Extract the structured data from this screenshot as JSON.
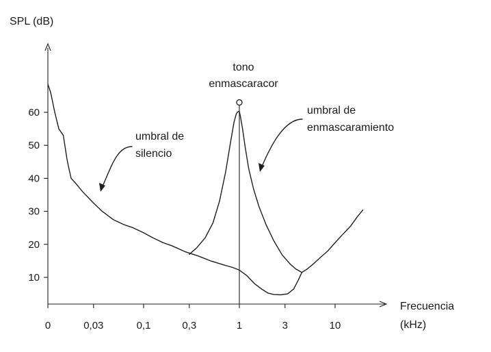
{
  "chart_data": {
    "type": "line",
    "title": "",
    "ylabel": "SPL (dB)",
    "xlabel_line1": "Frecuencia",
    "xlabel_line2": "(kHz)",
    "x_scale": "log",
    "x_ticks": [
      {
        "label": "0",
        "khz": 0.01
      },
      {
        "label": "0,03",
        "khz": 0.03
      },
      {
        "label": "0,1",
        "khz": 0.1
      },
      {
        "label": "0,3",
        "khz": 0.3
      },
      {
        "label": "1",
        "khz": 1
      },
      {
        "label": "3",
        "khz": 3
      },
      {
        "label": "10",
        "khz": 10
      }
    ],
    "y_ticks": [
      10,
      20,
      30,
      40,
      50,
      60
    ],
    "ylim": [
      0,
      75
    ],
    "series": [
      {
        "name": "umbral de silencio",
        "x_khz": [
          0.01,
          0.0107,
          0.0118,
          0.013,
          0.0145,
          0.0158,
          0.0163,
          0.0175,
          0.0195,
          0.023,
          0.03,
          0.037,
          0.048,
          0.062,
          0.078,
          0.1,
          0.125,
          0.16,
          0.2,
          0.27,
          0.37,
          0.5,
          0.7,
          0.85,
          1.0,
          1.2,
          1.45,
          1.7,
          2.0,
          2.3,
          2.7,
          3.2,
          3.7,
          4.1,
          4.5,
          5.1,
          5.9,
          7.0,
          8.4,
          10.0,
          12.0,
          14.5,
          17.0,
          19.5
        ],
        "y_db": [
          68.5,
          66,
          60,
          55,
          53,
          46,
          44,
          40,
          38.5,
          36,
          32.5,
          30,
          27.5,
          26,
          25,
          23.5,
          22,
          20.5,
          19.5,
          17.8,
          16.5,
          15,
          13.7,
          13,
          12.2,
          10.5,
          8,
          6.5,
          5.2,
          4.8,
          4.7,
          5,
          6.5,
          9,
          11.5,
          12.5,
          14,
          16,
          18,
          20.5,
          23,
          25.5,
          28.3,
          30.4
        ]
      },
      {
        "name": "umbral de enmascaramiento",
        "x_khz": [
          0.3,
          0.36,
          0.44,
          0.53,
          0.62,
          0.72,
          0.81,
          0.88,
          0.93,
          0.97,
          1.0,
          1.03,
          1.08,
          1.15,
          1.25,
          1.4,
          1.6,
          1.9,
          2.3,
          2.8,
          3.4,
          3.9,
          4.2,
          4.5
        ],
        "y_db": [
          17,
          19,
          22,
          26.5,
          33,
          42,
          51,
          57,
          59.6,
          60.2,
          60.3,
          58.5,
          55,
          49.5,
          43,
          37,
          31.5,
          26,
          21,
          16.8,
          14,
          12.5,
          12,
          11.5
        ]
      }
    ],
    "marker": {
      "label_line1": "tono",
      "label_line2": "enmascaracor",
      "khz": 1,
      "db": 63
    },
    "annotations": [
      {
        "line1": "umbral de",
        "line2": "silencio"
      },
      {
        "line1": "umbral de",
        "line2": "enmascaramiento"
      }
    ]
  }
}
